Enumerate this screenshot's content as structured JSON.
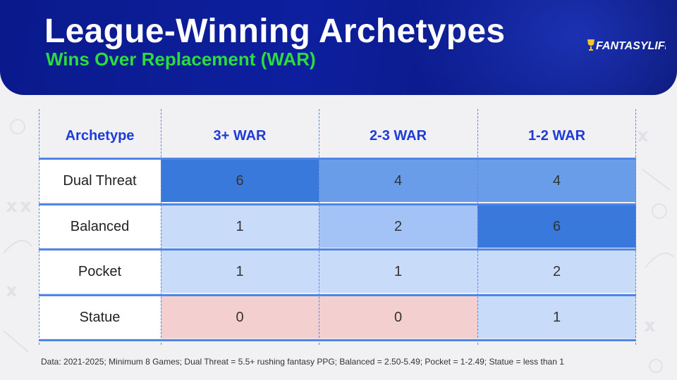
{
  "header": {
    "title": "League-Winning Archetypes",
    "subtitle": "Wins Over Replacement (WAR)",
    "logo_text": "FANTASYLIFE"
  },
  "chart_data": {
    "type": "table",
    "title": "League-Winning Archetypes",
    "subtitle": "Wins Over Replacement (WAR)",
    "row_header": "Archetype",
    "columns": [
      "3+ WAR",
      "2-3 WAR",
      "1-2 WAR"
    ],
    "rows": [
      {
        "label": "Dual Threat",
        "values": [
          6,
          4,
          4
        ]
      },
      {
        "label": "Balanced",
        "values": [
          1,
          2,
          6
        ]
      },
      {
        "label": "Pocket",
        "values": [
          1,
          1,
          2
        ]
      },
      {
        "label": "Statue",
        "values": [
          0,
          0,
          1
        ]
      }
    ]
  },
  "colors": {
    "header_bg": "#0d1f9e",
    "title": "#ffffff",
    "subtitle": "#2bdc3c",
    "column_header": "#1d3bd6",
    "separator": "#4d86e8",
    "scale_high": "#3a79dc",
    "scale_mid": "#6a9de9",
    "scale_low_mid": "#a3c2f5",
    "scale_low": "#c8dbf8",
    "zero": "#f4cfcf"
  },
  "footnote": "Data: 2021-2025; Minimum 8 Games; Dual Threat = 5.5+ rushing fantasy PPG; Balanced = 2.50-5.49; Pocket = 1-2.49; Statue = less than 1"
}
